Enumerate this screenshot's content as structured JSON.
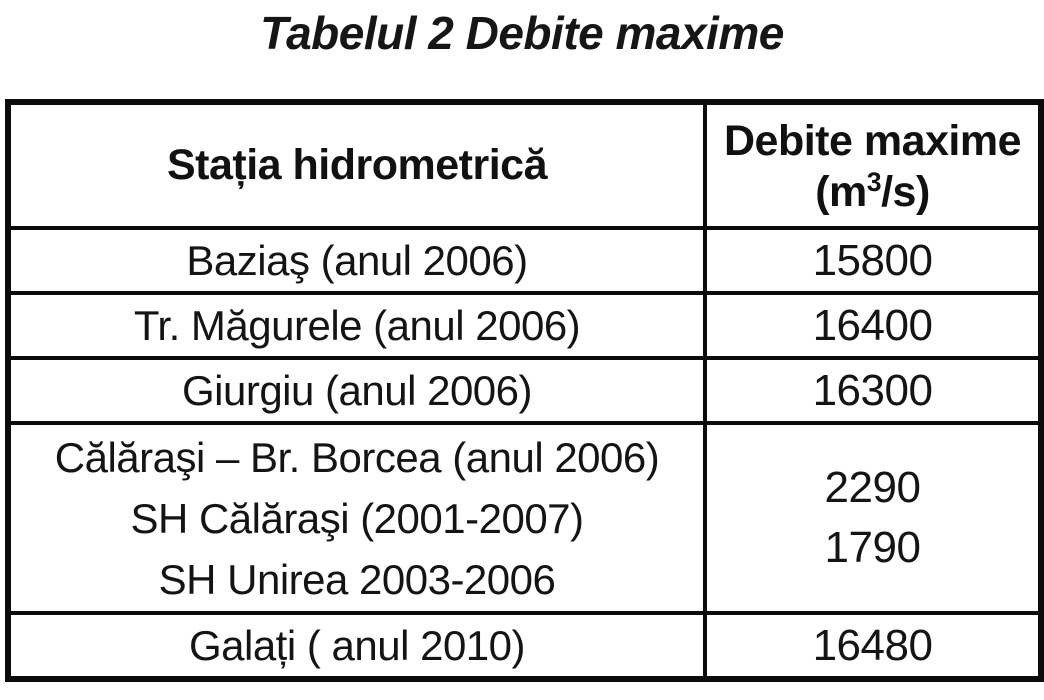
{
  "title": "Tabelul 2 Debite maxime",
  "header": {
    "station_col": "Stația hidrometrică",
    "debite_col_line1": "Debite maxime",
    "debite_unit": {
      "pre": "(m",
      "sup": "3",
      "post": "/s)"
    }
  },
  "rows": [
    {
      "station_lines": [
        "Baziaş (anul 2006)"
      ],
      "values": [
        "15800"
      ]
    },
    {
      "station_lines": [
        "Tr. Măgurele (anul 2006)"
      ],
      "values": [
        "16400"
      ]
    },
    {
      "station_lines": [
        "Giurgiu (anul 2006)"
      ],
      "values": [
        "16300"
      ]
    },
    {
      "station_lines": [
        "Călăraşi – Br. Borcea (anul 2006)",
        "SH Călăraşi (2001-2007)",
        "SH Unirea 2003-2006"
      ],
      "values": [
        "2290",
        "1790"
      ]
    },
    {
      "station_lines": [
        "Galați ( anul 2010)"
      ],
      "values": [
        "16480"
      ]
    }
  ],
  "colors": {
    "border": "#0b0b0b",
    "text": "#141414",
    "background": "#ffffff"
  }
}
